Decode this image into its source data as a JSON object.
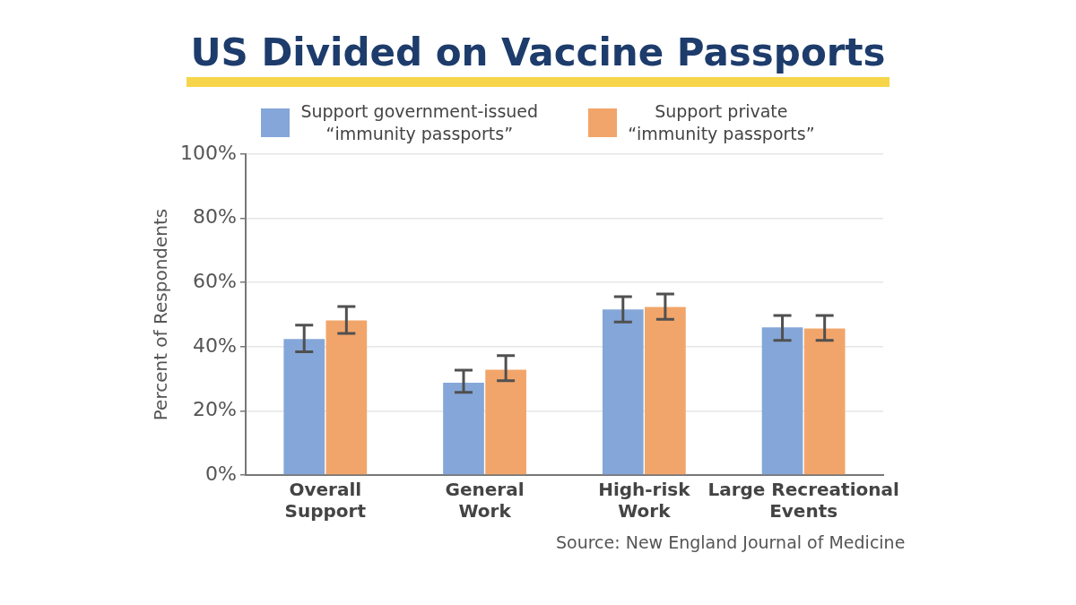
{
  "chart_data": {
    "type": "bar",
    "title": "US Divided on Vaccine Passports",
    "ylabel": "Percent of Respondents",
    "categories": [
      "Overall\nSupport",
      "General\nWork",
      "High-risk\nWork",
      "Large Recreational\nEvents"
    ],
    "series": [
      {
        "name": "Support government-issued\n“immunity passports”",
        "color": "#85a6d8",
        "values": [
          42.4,
          28.8,
          51.6,
          46.0
        ],
        "errors": [
          [
            38.4,
            46.7
          ],
          [
            25.8,
            32.7
          ],
          [
            47.7,
            55.6
          ],
          [
            42.0,
            49.7
          ]
        ]
      },
      {
        "name": "Support private\n“immunity passports”",
        "color": "#f2a56a",
        "values": [
          48.2,
          32.8,
          52.4,
          45.7
        ],
        "errors": [
          [
            44.1,
            52.5
          ],
          [
            29.4,
            37.2
          ],
          [
            48.5,
            56.4
          ],
          [
            42.0,
            49.7
          ]
        ]
      }
    ],
    "ylim": [
      0,
      100
    ],
    "yticks": [
      {
        "value": 0,
        "label": "0%"
      },
      {
        "value": 20,
        "label": "20%"
      },
      {
        "value": 40,
        "label": "40%"
      },
      {
        "value": 60,
        "label": "60%"
      },
      {
        "value": 80,
        "label": "80%"
      },
      {
        "value": 100,
        "label": "100%"
      }
    ],
    "grid": "y",
    "legend": "top",
    "annotations": [
      "Source: New England Journal of Medicine"
    ]
  }
}
